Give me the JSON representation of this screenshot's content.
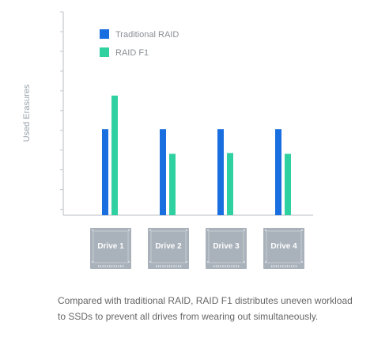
{
  "chart_data": {
    "type": "bar",
    "categories": [
      "Drive 1",
      "Drive 2",
      "Drive 3",
      "Drive 4"
    ],
    "series": [
      {
        "name": "Traditional RAID",
        "color": "#1a6fe0",
        "values": [
          108,
          108,
          108,
          108
        ]
      },
      {
        "name": "RAID F1",
        "color": "#2fd1a0",
        "values": [
          150,
          77,
          78,
          77
        ]
      }
    ],
    "ylabel": "Used Erasures",
    "xlabel": "",
    "ylim": [
      0,
      255
    ],
    "grid": false,
    "legend": "top-left",
    "category_icon": "ssd-drive-icon"
  },
  "caption": "Compared with traditional RAID, RAID F1 distributes uneven workload to SSDs to prevent all drives from wearing out simultaneously."
}
